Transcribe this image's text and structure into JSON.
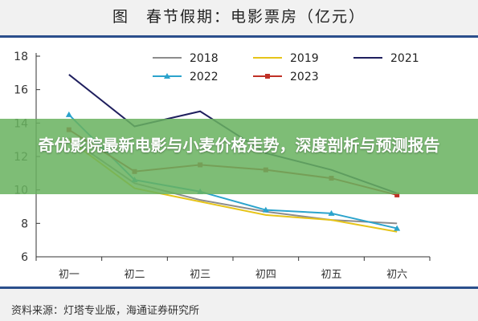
{
  "title": "图　春节假期：电影票房（亿元）",
  "source": "资料来源：灯塔专业版，海通证券研究所",
  "banner": {
    "text": "奇优影院最新电影与小麦价格走势，深度剖析与预测报告"
  },
  "colors": {
    "header_rule": "#2b4f8c",
    "banner_bg": "#69b25f"
  },
  "chart_data": {
    "type": "line",
    "categories": [
      "初一",
      "初二",
      "初三",
      "初四",
      "初五",
      "初六"
    ],
    "ylim": [
      6,
      18
    ],
    "yticks": [
      6,
      8,
      10,
      12,
      14,
      16,
      18
    ],
    "grid": false,
    "legend_position": "top-right",
    "series": [
      {
        "name": "2018",
        "color": "#8c8c8c",
        "marker": "none",
        "values": [
          13.1,
          10.4,
          9.4,
          8.7,
          8.2,
          8.0
        ]
      },
      {
        "name": "2019",
        "color": "#e6c419",
        "marker": "none",
        "values": [
          13.0,
          10.1,
          9.3,
          8.5,
          8.2,
          7.5
        ]
      },
      {
        "name": "2021",
        "color": "#1f1f5e",
        "marker": "none",
        "values": [
          16.9,
          13.8,
          14.7,
          12.2,
          11.2,
          9.8
        ]
      },
      {
        "name": "2022",
        "color": "#2ba3cc",
        "marker": "triangle",
        "values": [
          14.5,
          10.6,
          9.9,
          8.8,
          8.6,
          7.7
        ]
      },
      {
        "name": "2023",
        "color": "#c03026",
        "marker": "square",
        "values": [
          13.6,
          11.1,
          11.5,
          11.2,
          10.7,
          9.7
        ]
      }
    ]
  }
}
